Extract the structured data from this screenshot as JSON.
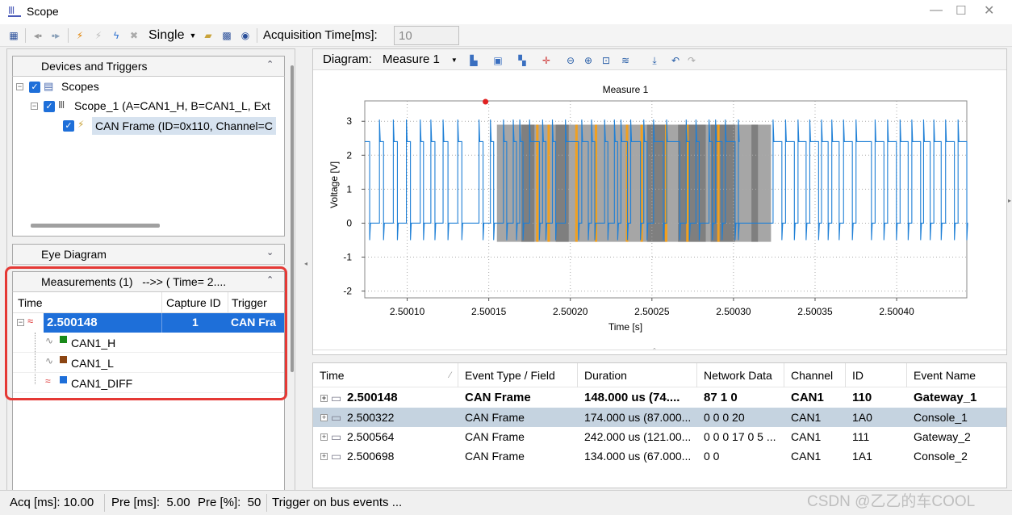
{
  "window": {
    "title": "Scope"
  },
  "toolbar": {
    "mode_label": "Single",
    "acq_label": "Acquisition Time[ms]:",
    "acq_value": "10"
  },
  "devices": {
    "header": "Devices and Triggers",
    "scopes_label": "Scopes",
    "scope1_label": "Scope_1 (A=CAN1_H, B=CAN1_L, Ext",
    "frame_label": "CAN Frame (ID=0x110, Channel=C"
  },
  "eye": {
    "header": "Eye Diagram"
  },
  "measurements": {
    "header": "Measurements (1)   -->> ( Time= 2....",
    "columns": [
      "Time",
      "Capture ID",
      "Trigger"
    ],
    "row": {
      "time": "2.500148",
      "capture_id": "1",
      "trigger": "CAN Fra"
    },
    "signals": [
      {
        "name": "CAN1_H",
        "color": "#1a8a1a"
      },
      {
        "name": "CAN1_L",
        "color": "#8b4513"
      },
      {
        "name": "CAN1_DIFF",
        "color": "#1e6fd9"
      }
    ]
  },
  "diagram": {
    "label": "Diagram:",
    "measure": "Measure 1"
  },
  "chart_data": {
    "type": "line",
    "title": "Measure 1",
    "xlabel": "Time [s]",
    "ylabel": "Voltage [V]",
    "xlim": [
      2.500074,
      2.500443
    ],
    "ylim": [
      -2.2,
      3.6
    ],
    "x_ticks": [
      "2.50010",
      "2.50015",
      "2.50020",
      "2.50025",
      "2.50030",
      "2.50035",
      "2.50040"
    ],
    "x_tick_values": [
      2.5001,
      2.50015,
      2.5002,
      2.50025,
      2.5003,
      2.50035,
      2.5004
    ],
    "y_ticks": [
      "3",
      "2",
      "1",
      "0",
      "-1",
      "-2"
    ],
    "y_tick_values": [
      3,
      2,
      1,
      0,
      -1,
      -2
    ],
    "grid": true,
    "high_level": 2.4,
    "low_level": 0,
    "series_color": "#1e7fd6",
    "highlight_x": [
      2.500148,
      2.500322
    ],
    "trigger_x": 2.500148
  },
  "events": {
    "columns": [
      "Time",
      "Event Type / Field",
      "Duration",
      "Network Data",
      "Channel",
      "ID",
      "Event Name"
    ],
    "rows": [
      {
        "time": "2.500148",
        "type": "CAN Frame",
        "duration": "148.000 us (74....",
        "data": "87 1 0",
        "channel": "CAN1",
        "id": "110",
        "name": "Gateway_1"
      },
      {
        "time": "2.500322",
        "type": "CAN Frame",
        "duration": "174.000 us (87.000...",
        "data": "0 0 0 20",
        "channel": "CAN1",
        "id": "1A0",
        "name": "Console_1"
      },
      {
        "time": "2.500564",
        "type": "CAN Frame",
        "duration": "242.000 us (121.00...",
        "data": "0 0 0 17 0 5 ...",
        "channel": "CAN1",
        "id": "111",
        "name": "Gateway_2"
      },
      {
        "time": "2.500698",
        "type": "CAN Frame",
        "duration": "134.000 us (67.000...",
        "data": "0 0",
        "channel": "CAN1",
        "id": "1A1",
        "name": "Console_2"
      }
    ]
  },
  "status": {
    "acq": "Acq [ms]: 10.00",
    "pre_ms": "Pre [ms]:  5.00",
    "pre_pct": "Pre [%]:  50",
    "trigger": "Trigger on bus events ..."
  },
  "watermark": "CSDN @乙乙的车COOL"
}
